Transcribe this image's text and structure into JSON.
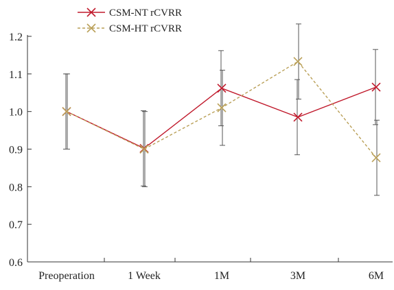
{
  "chart_data": {
    "type": "line",
    "title": "",
    "xlabel": "",
    "ylabel": "",
    "categories": [
      "Preoperation",
      "1 Week",
      "1M",
      "3M",
      "6M"
    ],
    "ylim": [
      0.6,
      1.2
    ],
    "yticks": [
      "0.6",
      "0.7",
      "0.8",
      "0.9",
      "1.0",
      "1.1",
      "1.2"
    ],
    "grid": false,
    "legend_position": "top-left",
    "series": [
      {
        "name": "CSM-NT rCVRR",
        "values": [
          1.0,
          0.902,
          1.062,
          0.985,
          1.065
        ],
        "error": [
          0.1,
          0.1,
          0.1,
          0.1,
          0.1
        ],
        "color": "#c0192b",
        "line_style": "solid",
        "marker": "x"
      },
      {
        "name": "CSM-HT rCVRR",
        "values": [
          1.0,
          0.9,
          1.01,
          1.133,
          0.877
        ],
        "error": [
          0.1,
          0.1,
          0.1,
          0.1,
          0.1
        ],
        "color": "#b99f56",
        "line_style": "dashed",
        "marker": "x"
      }
    ]
  }
}
